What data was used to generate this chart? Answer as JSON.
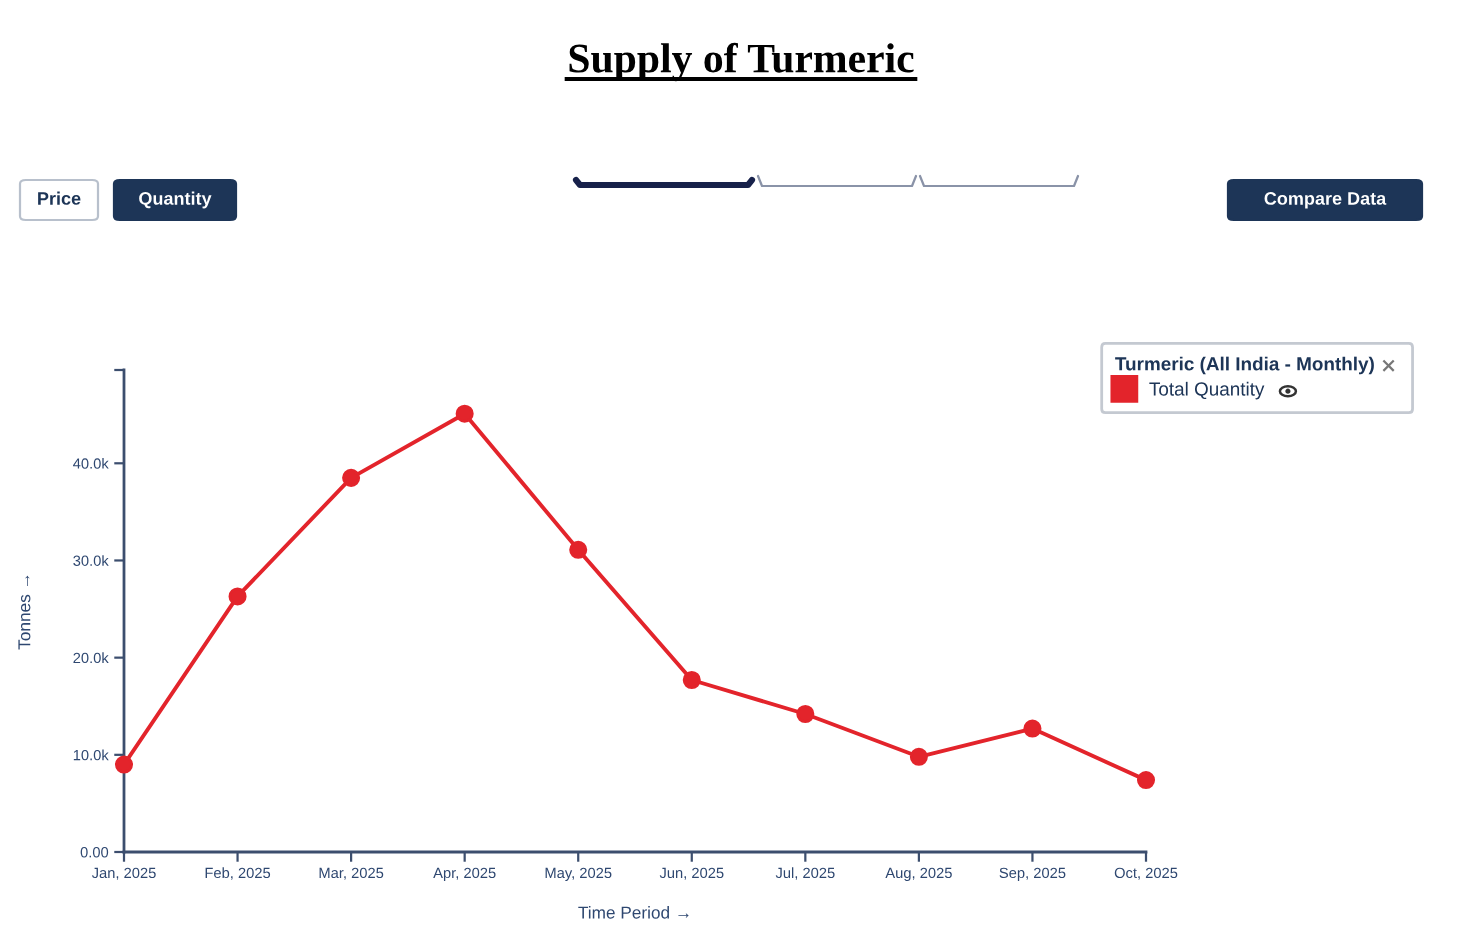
{
  "chart_data": {
    "type": "line",
    "title": "Supply of Turmeric",
    "xlabel": "Time Period →",
    "ylabel": "Tonnes →",
    "legend_title": "Turmeric (All India - Monthly)",
    "categories": [
      "Jan, 2025",
      "Feb, 2025",
      "Mar, 2025",
      "Apr, 2025",
      "May, 2025",
      "Jun, 2025",
      "Jul, 2025",
      "Aug, 2025",
      "Sep, 2025",
      "Oct, 2025"
    ],
    "series": [
      {
        "name": "Total Quantity",
        "color": "#e3242b",
        "values": [
          9000,
          26300,
          38500,
          45100,
          31100,
          17700,
          14200,
          9800,
          12700,
          7400
        ]
      }
    ],
    "ylim": [
      0,
      49600
    ],
    "yticks": [
      {
        "value": 0,
        "label": "0.00"
      },
      {
        "value": 10000,
        "label": "10.0k"
      },
      {
        "value": 20000,
        "label": "20.0k"
      },
      {
        "value": 30000,
        "label": "30.0k"
      },
      {
        "value": 40000,
        "label": "40.0k"
      },
      {
        "value": 49600,
        "label": null
      }
    ],
    "marker": "circle",
    "line_style": "solid",
    "legend": "top right",
    "annotations": [
      "Price",
      "Quantity",
      "Compare Data"
    ]
  }
}
